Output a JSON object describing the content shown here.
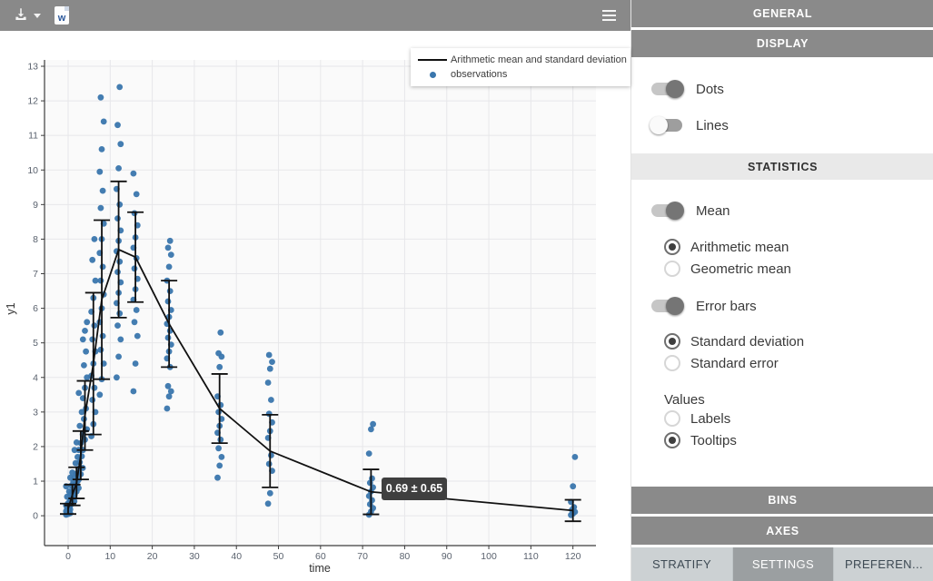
{
  "toolbar": {
    "download_button": {
      "icon": "download-icon"
    },
    "word_export_button": {
      "icon": "word-file-icon",
      "letter": "w"
    },
    "menu_button": {
      "icon": "hamburger-menu-icon"
    }
  },
  "colors": {
    "dot": "#3a76ad",
    "mean_line": "#111111",
    "toolbar_gray": "#898989",
    "tooltip_bg": "#3f3f3f"
  },
  "chart_data": {
    "type": "scatter",
    "title": "",
    "xlabel": "time",
    "ylabel": "y1",
    "xlim": [
      -5.6,
      125.5
    ],
    "ylim": [
      -0.87,
      13
    ],
    "x_ticks": [
      0,
      10,
      20,
      30,
      40,
      50,
      60,
      70,
      80,
      90,
      100,
      110,
      120
    ],
    "y_ticks": [
      0,
      1,
      2,
      3,
      4,
      5,
      6,
      7,
      8,
      9,
      10,
      11,
      12,
      13
    ],
    "grid": true,
    "legend_position": "top-right",
    "series": [
      {
        "name": "observations",
        "type": "scatter",
        "color": "#3a76ad",
        "observations": [
          {
            "t": 0,
            "values": [
              0.03,
              0.05,
              0.07,
              0.09,
              0.11,
              0.13,
              0.15,
              0.18,
              0.21,
              0.25,
              0.3,
              0.36,
              0.44,
              0.55,
              0.7,
              0.85
            ]
          },
          {
            "t": 1,
            "values": [
              0.3,
              0.36,
              0.42,
              0.48,
              0.55,
              0.62,
              0.7,
              0.78,
              0.87,
              0.97,
              1.1,
              1.25
            ]
          },
          {
            "t": 2,
            "values": [
              0.6,
              0.7,
              0.8,
              0.9,
              1.0,
              1.1,
              1.22,
              1.36,
              1.52,
              1.7,
              1.9,
              2.12
            ]
          },
          {
            "t": 3,
            "values": [
              1.05,
              1.2,
              1.38,
              1.55,
              1.72,
              1.9,
              2.1,
              2.35,
              2.6,
              3.0,
              3.55
            ]
          },
          {
            "t": 4,
            "values": [
              1.9,
              2.2,
              2.5,
              2.8,
              3.1,
              3.4,
              3.7,
              4.0,
              4.35,
              4.75,
              5.1,
              5.35,
              5.6
            ]
          },
          {
            "t": 6,
            "values": [
              2.3,
              2.65,
              3.0,
              3.35,
              3.7,
              4.05,
              4.4,
              4.75,
              5.1,
              5.5,
              5.9,
              6.3,
              6.8,
              7.4,
              8.0
            ]
          },
          {
            "t": 8,
            "values": [
              3.5,
              3.95,
              4.4,
              4.8,
              5.2,
              5.6,
              6.0,
              6.4,
              6.8,
              7.2,
              7.6,
              8.0,
              8.45,
              8.9,
              9.4,
              9.95,
              10.6,
              11.4,
              12.1
            ]
          },
          {
            "t": 12,
            "values": [
              4.0,
              4.6,
              5.1,
              5.5,
              5.85,
              6.15,
              6.45,
              6.75,
              7.05,
              7.35,
              7.65,
              7.95,
              8.25,
              8.6,
              9.0,
              9.45,
              10.05,
              10.75,
              11.3,
              12.4
            ]
          },
          {
            "t": 16,
            "values": [
              3.6,
              4.4,
              5.2,
              5.6,
              5.95,
              6.25,
              6.55,
              6.85,
              7.15,
              7.45,
              7.75,
              8.05,
              8.4,
              8.75,
              9.3,
              9.9
            ]
          },
          {
            "t": 24,
            "values": [
              3.1,
              3.45,
              3.6,
              3.75,
              4.3,
              4.55,
              4.75,
              4.95,
              5.15,
              5.35,
              5.55,
              5.75,
              5.95,
              6.2,
              6.5,
              6.8,
              7.2,
              7.55,
              7.75,
              7.95
            ]
          },
          {
            "t": 36,
            "values": [
              1.1,
              1.45,
              1.7,
              1.95,
              2.2,
              2.4,
              2.6,
              2.8,
              3.0,
              3.2,
              3.45,
              4.3,
              4.6,
              4.7,
              5.3
            ]
          },
          {
            "t": 48,
            "values": [
              0.35,
              0.65,
              1.3,
              1.5,
              1.75,
              2.25,
              2.45,
              2.7,
              2.95,
              3.35,
              3.85,
              4.25,
              4.45,
              4.65
            ]
          },
          {
            "t": 72,
            "values": [
              0.03,
              0.12,
              0.22,
              0.33,
              0.45,
              0.57,
              0.7,
              0.82,
              0.95,
              1.08,
              1.8,
              2.5,
              2.65
            ]
          },
          {
            "t": 120,
            "values": [
              0.02,
              0.06,
              0.11,
              0.17,
              0.25,
              0.4,
              0.85,
              1.7
            ]
          }
        ]
      },
      {
        "name": "Arithmetic mean and standard deviation",
        "type": "line+errorbar",
        "color": "#111111",
        "times": [
          0,
          1,
          2,
          3,
          4,
          6,
          8,
          12,
          16,
          24,
          36,
          48,
          72,
          120
        ],
        "mean": [
          0.2,
          0.6,
          0.95,
          1.75,
          2.9,
          4.4,
          6.25,
          7.7,
          7.48,
          5.55,
          3.1,
          1.87,
          0.69,
          0.15
        ],
        "sd": [
          0.15,
          0.3,
          0.45,
          0.7,
          1.0,
          2.05,
          2.3,
          1.97,
          1.3,
          1.25,
          1.0,
          1.05,
          0.65,
          0.31
        ]
      }
    ],
    "tooltip": {
      "text": "0.69 ± 0.65",
      "time": 72,
      "mean": 0.69,
      "sd": 0.65
    }
  },
  "panel": {
    "section_titles": {
      "general": "GENERAL",
      "display": "DISPLAY",
      "statistics": "STATISTICS",
      "bins": "BINS",
      "axes": "AXES"
    },
    "display": {
      "toggles": [
        {
          "label": "Dots",
          "on": true
        },
        {
          "label": "Lines",
          "on": false
        }
      ]
    },
    "statistics": {
      "mean_toggle": {
        "label": "Mean",
        "on": true
      },
      "mean_options": [
        {
          "label": "Arithmetic mean",
          "selected": true
        },
        {
          "label": "Geometric mean",
          "selected": false
        }
      ],
      "errorbar_toggle": {
        "label": "Error bars",
        "on": true
      },
      "errorbar_options": [
        {
          "label": "Standard deviation",
          "selected": true
        },
        {
          "label": "Standard error",
          "selected": false
        }
      ],
      "values_label": "Values",
      "values_options": [
        {
          "label": "Labels",
          "selected": false
        },
        {
          "label": "Tooltips",
          "selected": true
        }
      ]
    },
    "tabs": [
      {
        "label": "STRATIFY",
        "active": false
      },
      {
        "label": "SETTINGS",
        "active": true
      },
      {
        "label": "PREFEREN...",
        "active": false
      }
    ]
  }
}
